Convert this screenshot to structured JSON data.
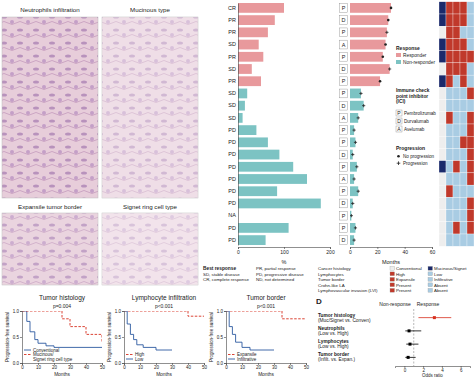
{
  "panels": {
    "label_d": "D"
  },
  "images": {
    "labels": [
      "Neutrophils infiltration",
      "Mucinous type",
      "Expansile tumor border",
      "Signet ring cell type"
    ]
  },
  "chart_data": [
    {
      "type": "bar",
      "orientation": "horizontal",
      "categories": [
        "CR",
        "PR",
        "PR",
        "SD",
        "PR",
        "SD",
        "PR",
        "SD",
        "SD",
        "SD",
        "PD",
        "PD",
        "PD",
        "PD",
        "PD",
        "PD",
        "PD",
        "NA",
        "PD",
        "PD"
      ],
      "values": [
        100,
        80,
        65,
        45,
        55,
        30,
        50,
        20,
        15,
        10,
        40,
        65,
        90,
        120,
        150,
        85,
        180,
        null,
        110,
        60
      ],
      "colors": [
        "#e8999c",
        "#e8999c",
        "#e8999c",
        "#e8999c",
        "#e8999c",
        "#e8999c",
        "#e8999c",
        "#7cc3c3",
        "#7cc3c3",
        "#7cc3c3",
        "#7cc3c3",
        "#7cc3c3",
        "#7cc3c3",
        "#7cc3c3",
        "#7cc3c3",
        "#7cc3c3",
        "#7cc3c3",
        "#7cc3c3",
        "#7cc3c3",
        "#7cc3c3"
      ],
      "x_label": "%",
      "xlim": [
        0,
        200
      ],
      "xticks": [
        0,
        100,
        200
      ],
      "legend_title": "Best response",
      "legend_items": [
        "SD, stable disease",
        "CR, complete response",
        "PR, partial response",
        "PD, progressive disease",
        "ND, not determined"
      ]
    },
    {
      "type": "swimmer",
      "orientation": "horizontal",
      "values": [
        30,
        28,
        27,
        26,
        24,
        29,
        22,
        8,
        10,
        6,
        3,
        4,
        2,
        5,
        3,
        6,
        2,
        1,
        4,
        3
      ],
      "colors": [
        "#e8999c",
        "#e8999c",
        "#e8999c",
        "#e8999c",
        "#e8999c",
        "#e8999c",
        "#e8999c",
        "#7cc3c3",
        "#7cc3c3",
        "#7cc3c3",
        "#7cc3c3",
        "#7cc3c3",
        "#7cc3c3",
        "#7cc3c3",
        "#7cc3c3",
        "#7cc3c3",
        "#7cc3c3",
        "#7cc3c3",
        "#7cc3c3",
        "#7cc3c3"
      ],
      "ici": [
        "P",
        "D",
        "P",
        "A",
        "P",
        "D",
        "P",
        "P",
        "D",
        "A",
        "P",
        "P",
        "D",
        "P",
        "A",
        "P",
        "D",
        "P",
        "P",
        "D"
      ],
      "progression": [
        false,
        false,
        true,
        false,
        false,
        true,
        false,
        true,
        true,
        true,
        true,
        true,
        true,
        true,
        true,
        true,
        true,
        true,
        true,
        true
      ],
      "x_label": "Months",
      "xlim": [
        0,
        60
      ],
      "xticks": [
        0,
        20,
        40,
        60
      ],
      "legend_title": "Response",
      "series": [
        {
          "name": "Responder",
          "color": "#e8999c"
        },
        {
          "name": "Non-responder",
          "color": "#7cc3c3"
        }
      ],
      "ici_legend": {
        "title": [
          "Immune check",
          "point inhibitor",
          "(ICI)"
        ],
        "items": [
          {
            "code": "P",
            "name": "Pembrolizumab"
          },
          {
            "code": "D",
            "name": "Durvalumab"
          },
          {
            "code": "A",
            "name": "Avelumab"
          }
        ]
      },
      "progression_legend": {
        "title": "Progression",
        "items": [
          "No progression",
          "Progression"
        ]
      }
    },
    {
      "type": "heatmap",
      "columns": [
        {
          "name": "Cancer histology",
          "levels": [
            "Conventional",
            "Mucinous/Signet"
          ],
          "colors": [
            "#eeeeee",
            "#1b2a6b"
          ]
        },
        {
          "name": "Lymphocytes",
          "levels": [
            "High",
            "Low"
          ],
          "colors": [
            "#c0392b",
            "#a9cce3"
          ]
        },
        {
          "name": "Tumor border",
          "levels": [
            "Expansile",
            "Infiltrative"
          ],
          "colors": [
            "#c0392b",
            "#a9cce3"
          ]
        },
        {
          "name": "Crohn-like LA",
          "levels": [
            "Present",
            "Absent"
          ],
          "colors": [
            "#c0392b",
            "#a9cce3"
          ]
        },
        {
          "name": "Lymphovascular invasion (LVI)",
          "levels": [
            "Present",
            "Absent"
          ],
          "colors": [
            "#c0392b",
            "#a9cce3"
          ]
        }
      ],
      "cells": [
        [
          1,
          0,
          0,
          0,
          1
        ],
        [
          1,
          0,
          0,
          0,
          1
        ],
        [
          0,
          0,
          0,
          1,
          1
        ],
        [
          1,
          0,
          0,
          0,
          1
        ],
        [
          1,
          0,
          0,
          0,
          0
        ],
        [
          0,
          0,
          0,
          0,
          1
        ],
        [
          1,
          0,
          1,
          0,
          1
        ],
        [
          0,
          1,
          1,
          1,
          0
        ],
        [
          0,
          1,
          1,
          1,
          1
        ],
        [
          0,
          0,
          1,
          1,
          0
        ],
        [
          0,
          1,
          1,
          1,
          0
        ],
        [
          0,
          1,
          1,
          0,
          0
        ],
        [
          0,
          1,
          1,
          1,
          0
        ],
        [
          1,
          1,
          0,
          1,
          0
        ],
        [
          0,
          1,
          1,
          1,
          0
        ],
        [
          0,
          0,
          1,
          1,
          1
        ],
        [
          0,
          1,
          1,
          1,
          0
        ],
        [
          0,
          1,
          1,
          1,
          0
        ],
        [
          0,
          1,
          0,
          1,
          0
        ],
        [
          0,
          1,
          1,
          1,
          1
        ]
      ]
    },
    {
      "type": "line",
      "line_style": "step",
      "title": "Tumor histology",
      "annotation": "p=0.004",
      "x_label": "Months",
      "y_label": "Progression-free survival",
      "xlim": [
        0,
        50
      ],
      "xticks": [
        0,
        10,
        20,
        30,
        40,
        50
      ],
      "ylim": [
        0,
        1
      ],
      "yticks": [
        {
          "value": 0,
          "label": "0.0"
        },
        {
          "value": 0.5,
          "label": "0.5"
        },
        {
          "value": 1,
          "label": "1.0"
        }
      ],
      "legend": "lower left",
      "series": [
        {
          "name": "Conventional",
          "color": "#2c5aa0",
          "line_style": "solid",
          "x": [
            0,
            3,
            5,
            8,
            10,
            15,
            20,
            50
          ],
          "values": [
            1,
            0.8,
            0.6,
            0.45,
            0.38,
            0.33,
            0.3,
            0.3
          ]
        },
        {
          "name": "Mucinous/Signet ring cell type",
          "color": "#d7301f",
          "line_style": "dashed",
          "x": [
            0,
            10,
            25,
            30,
            40,
            50
          ],
          "values": [
            1,
            1,
            0.85,
            0.7,
            0.55,
            0.4
          ]
        }
      ]
    },
    {
      "type": "line",
      "line_style": "step",
      "title": "Lymphocyte infiltration",
      "annotation": "p<0.001",
      "x_label": "Months",
      "y_label": "Progression-free survival",
      "xlim": [
        0,
        50
      ],
      "xticks": [
        0,
        10,
        20,
        30,
        40,
        50
      ],
      "ylim": [
        0,
        1
      ],
      "yticks": [
        {
          "value": 0,
          "label": "0.0"
        },
        {
          "value": 0.5,
          "label": "0.5"
        },
        {
          "value": 1,
          "label": "1.0"
        }
      ],
      "legend": "lower left",
      "series": [
        {
          "name": "High",
          "color": "#d7301f",
          "line_style": "dashed",
          "x": [
            0,
            40,
            50
          ],
          "values": [
            1,
            0.9,
            0.9
          ]
        },
        {
          "name": "Low",
          "color": "#2c5aa0",
          "line_style": "solid",
          "x": [
            0,
            2,
            4,
            6,
            8,
            12,
            20,
            30
          ],
          "values": [
            1,
            0.75,
            0.55,
            0.45,
            0.35,
            0.3,
            0.25,
            0.25
          ]
        }
      ]
    },
    {
      "type": "line",
      "line_style": "step",
      "title": "Tumor border",
      "annotation": "p<0.001",
      "x_label": "Months",
      "y_label": "Progression-free survival",
      "xlim": [
        0,
        50
      ],
      "xticks": [
        0,
        10,
        20,
        30,
        40,
        50
      ],
      "ylim": [
        0,
        1
      ],
      "yticks": [
        {
          "value": 0,
          "label": "0.0"
        },
        {
          "value": 0.5,
          "label": "0.5"
        },
        {
          "value": 1,
          "label": "1.0"
        }
      ],
      "legend": "lower left",
      "series": [
        {
          "name": "Expansile",
          "color": "#d7301f",
          "line_style": "dashed",
          "x": [
            0,
            35,
            50
          ],
          "values": [
            1,
            0.85,
            0.85
          ]
        },
        {
          "name": "Infiltrative",
          "color": "#2c5aa0",
          "line_style": "solid",
          "x": [
            0,
            2,
            4,
            6,
            10,
            15,
            30
          ],
          "values": [
            1,
            0.7,
            0.55,
            0.4,
            0.3,
            0.25,
            0.25
          ]
        }
      ]
    },
    {
      "type": "forest",
      "headers": [
        "Non-response",
        "Response"
      ],
      "categories": [
        [
          "Tumor histology",
          "(Muc/Signet vs. Conven)"
        ],
        [
          "Neutrophils",
          "(Low vs. High)"
        ],
        [
          "Lymphocytes",
          "(Low vs. High)"
        ],
        [
          "Tumor border",
          "(Infilt. vs. Expan.)"
        ]
      ],
      "values": [
        3.2,
        0.5,
        0.6,
        0.4
      ],
      "ci_low": [
        1.5,
        0.1,
        0.2,
        0.1
      ],
      "ci_high": [
        5,
        1.8,
        1.5,
        1.2
      ],
      "colors": [
        "#d7301f",
        "#000000",
        "#000000",
        "#000000"
      ],
      "reference": 1,
      "x_label": "Odds ratio",
      "xlim": [
        -1,
        7
      ],
      "xticks": [
        0,
        2,
        4,
        6
      ]
    }
  ]
}
